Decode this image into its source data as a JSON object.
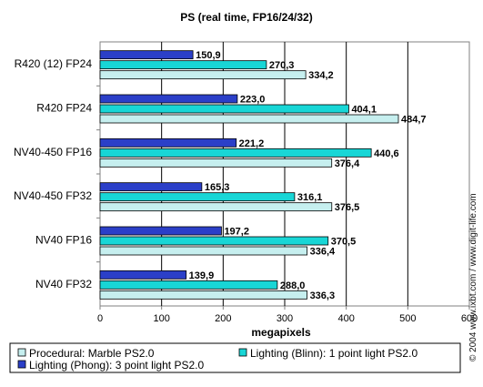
{
  "chart_data": {
    "type": "bar",
    "orientation": "horizontal",
    "title": "PS (real time, FP16/24/32)",
    "xlabel": "megapixels",
    "ylabel": "",
    "xlim": [
      0,
      600
    ],
    "x_ticks": [
      "0",
      "100",
      "200",
      "300",
      "400",
      "500",
      "600"
    ],
    "grid": true,
    "legend_position": "bottom",
    "categories": [
      "R420 (12) FP24",
      "R420 FP24",
      "NV40-450 FP16",
      "NV40-450 FP32",
      "NV40 FP16",
      "NV40 FP32"
    ],
    "series": [
      {
        "name": "Lighting (Phong): 3 point light PS2.0",
        "color": "#2b3fc8",
        "values": [
          150.9,
          223.0,
          221.2,
          165.3,
          197.2,
          139.9
        ],
        "labels": [
          "150,9",
          "223,0",
          "221,2",
          "165,3",
          "197,2",
          "139,9"
        ]
      },
      {
        "name": "Lighting (Blinn): 1 point light PS2.0",
        "color": "#18d6d6",
        "values": [
          270.3,
          404.1,
          440.6,
          316.1,
          370.5,
          288.0
        ],
        "labels": [
          "270,3",
          "404,1",
          "440,6",
          "316,1",
          "370,5",
          "288,0"
        ]
      },
      {
        "name": "Procedural: Marble PS2.0",
        "color": "#c6efef",
        "values": [
          334.2,
          484.7,
          376.4,
          376.5,
          336.4,
          336.3
        ],
        "labels": [
          "334,2",
          "484,7",
          "376,4",
          "376,5",
          "336,4",
          "336,3"
        ]
      }
    ],
    "watermark": "© 2004 www.ixbt.com / www.digit-life.com"
  }
}
